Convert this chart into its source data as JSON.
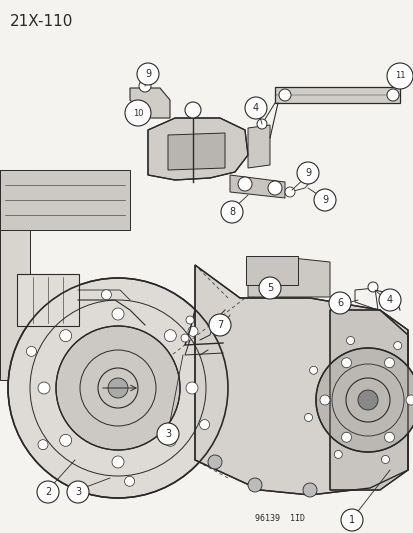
{
  "title": "21X-110",
  "watermark": "96139  1ID",
  "bg_color": "#f5f3f0",
  "line_color": "#2a2a2a",
  "title_fontsize": 11,
  "watermark_fontsize": 6,
  "fig_width": 4.14,
  "fig_height": 5.33,
  "dpi": 100
}
